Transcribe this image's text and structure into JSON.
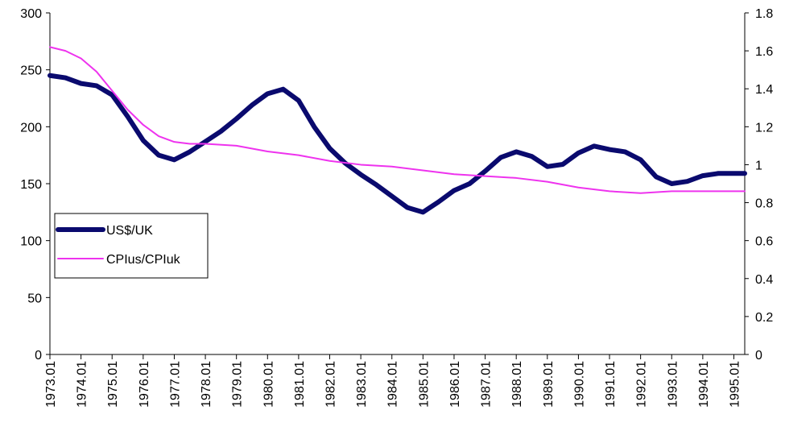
{
  "chart_data": {
    "type": "line",
    "xlim": [
      1973,
      1995.35
    ],
    "xticks": [
      {
        "value": 1973,
        "label": "1973.01"
      },
      {
        "value": 1974,
        "label": "1974.01"
      },
      {
        "value": 1975,
        "label": "1975.01"
      },
      {
        "value": 1976,
        "label": "1976.01"
      },
      {
        "value": 1977,
        "label": "1977.01"
      },
      {
        "value": 1978,
        "label": "1978.01"
      },
      {
        "value": 1979,
        "label": "1979.01"
      },
      {
        "value": 1980,
        "label": "1980.01"
      },
      {
        "value": 1981,
        "label": "1981.01"
      },
      {
        "value": 1982,
        "label": "1982.01"
      },
      {
        "value": 1983,
        "label": "1983.01"
      },
      {
        "value": 1984,
        "label": "1984.01"
      },
      {
        "value": 1985,
        "label": "1985.01"
      },
      {
        "value": 1986,
        "label": "1986.01"
      },
      {
        "value": 1987,
        "label": "1987.01"
      },
      {
        "value": 1988,
        "label": "1988.01"
      },
      {
        "value": 1989,
        "label": "1989.01"
      },
      {
        "value": 1990,
        "label": "1990.01"
      },
      {
        "value": 1991,
        "label": "1991.01"
      },
      {
        "value": 1992,
        "label": "1992.01"
      },
      {
        "value": 1993,
        "label": "1993.01"
      },
      {
        "value": 1994,
        "label": "1994.01"
      },
      {
        "value": 1995,
        "label": "1995.01"
      }
    ],
    "ylim": [
      0,
      300
    ],
    "yticks": [
      0,
      50,
      100,
      150,
      200,
      250,
      300
    ],
    "y2lim": [
      0,
      1.8
    ],
    "y2ticks": [
      0,
      0.2,
      0.4,
      0.6,
      0.8,
      1,
      1.2,
      1.4,
      1.6,
      1.8
    ],
    "legend": "left",
    "series": [
      {
        "name": "US$/UK",
        "color": "#0a0a6e",
        "width": 6,
        "x": [
          1973,
          1973.5,
          1974,
          1974.5,
          1975,
          1975.5,
          1976,
          1976.5,
          1977,
          1977.5,
          1978,
          1978.5,
          1979,
          1979.5,
          1980,
          1980.5,
          1981,
          1981.5,
          1982,
          1982.5,
          1983,
          1983.5,
          1984,
          1984.5,
          1985,
          1985.5,
          1986,
          1986.5,
          1987,
          1987.5,
          1988,
          1988.5,
          1989,
          1989.5,
          1990,
          1990.5,
          1991,
          1991.5,
          1992,
          1992.5,
          1993,
          1993.5,
          1994,
          1994.5,
          1995,
          1995.35
        ],
        "values": [
          245,
          243,
          238,
          236,
          228,
          209,
          188,
          175,
          171,
          178,
          187,
          196,
          207,
          219,
          229,
          233,
          223,
          200,
          181,
          168,
          158,
          149,
          139,
          129,
          125,
          134,
          144,
          150,
          161,
          173,
          178,
          174,
          165,
          167,
          177,
          183,
          180,
          178,
          171,
          156,
          150,
          152,
          157,
          159,
          159,
          159
        ]
      },
      {
        "name": "CPIus/CPIuk",
        "color": "#ee33ee",
        "width": 2,
        "axis": "y2",
        "x": [
          1973,
          1973.5,
          1974,
          1974.5,
          1975,
          1975.5,
          1976,
          1976.5,
          1977,
          1977.5,
          1978,
          1979,
          1980,
          1981,
          1982,
          1983,
          1984,
          1985,
          1986,
          1987,
          1988,
          1989,
          1990,
          1991,
          1992,
          1993,
          1994,
          1995,
          1995.35
        ],
        "values": [
          1.62,
          1.6,
          1.56,
          1.49,
          1.39,
          1.29,
          1.21,
          1.15,
          1.12,
          1.11,
          1.11,
          1.1,
          1.07,
          1.05,
          1.02,
          1.0,
          0.99,
          0.97,
          0.95,
          0.94,
          0.93,
          0.91,
          0.88,
          0.86,
          0.85,
          0.86,
          0.86,
          0.86,
          0.86
        ]
      }
    ]
  }
}
